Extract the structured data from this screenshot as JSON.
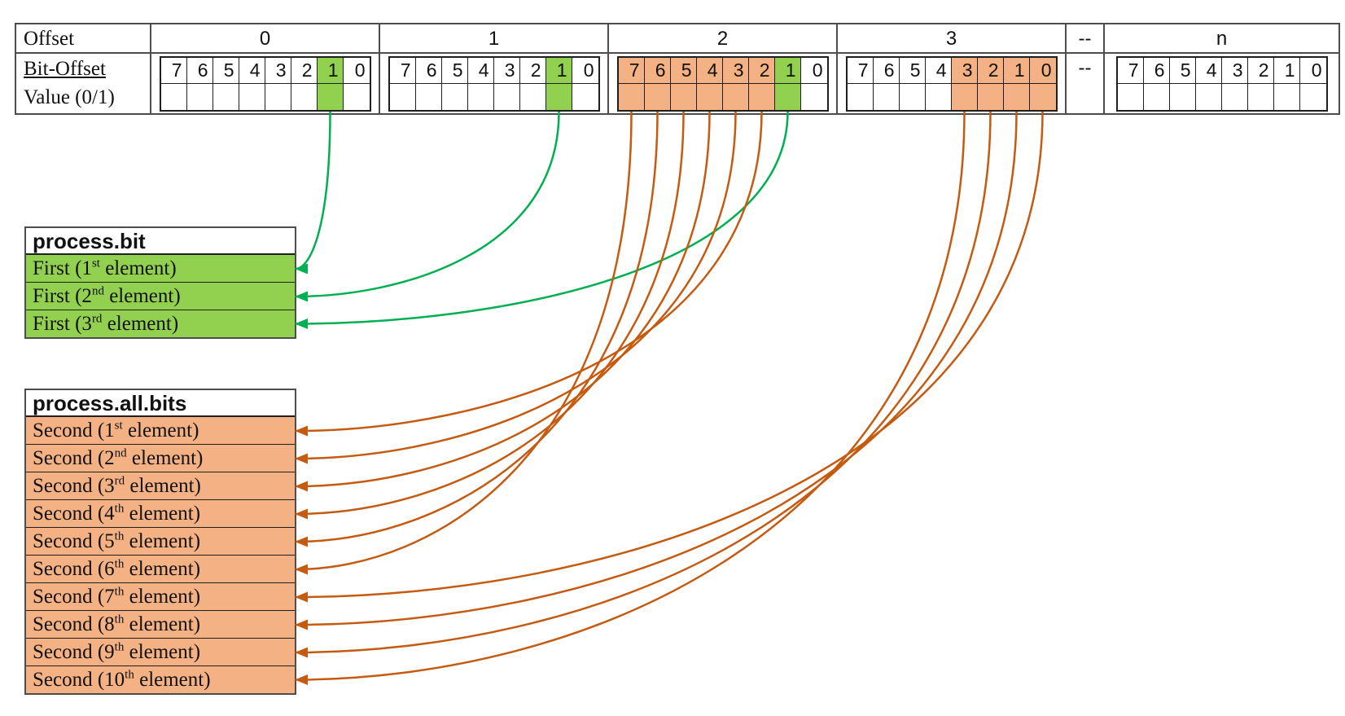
{
  "top_table": {
    "row_labels": {
      "offset": "Offset",
      "bit_offset": "Bit-Offset",
      "value": "Value (0/1)"
    },
    "groups": [
      {
        "type": "byte",
        "label": "0",
        "bits": [
          {
            "n": "7"
          },
          {
            "n": "6"
          },
          {
            "n": "5"
          },
          {
            "n": "4"
          },
          {
            "n": "3"
          },
          {
            "n": "2"
          },
          {
            "n": "1",
            "color": "green"
          },
          {
            "n": "0"
          }
        ]
      },
      {
        "type": "byte",
        "label": "1",
        "bits": [
          {
            "n": "7"
          },
          {
            "n": "6"
          },
          {
            "n": "5"
          },
          {
            "n": "4"
          },
          {
            "n": "3"
          },
          {
            "n": "2"
          },
          {
            "n": "1",
            "color": "green"
          },
          {
            "n": "0"
          }
        ]
      },
      {
        "type": "byte",
        "label": "2",
        "bits": [
          {
            "n": "7",
            "color": "orange"
          },
          {
            "n": "6",
            "color": "orange"
          },
          {
            "n": "5",
            "color": "orange"
          },
          {
            "n": "4",
            "color": "orange"
          },
          {
            "n": "3",
            "color": "orange"
          },
          {
            "n": "2",
            "color": "orange"
          },
          {
            "n": "1",
            "color": "green"
          },
          {
            "n": "0"
          }
        ]
      },
      {
        "type": "byte",
        "label": "3",
        "bits": [
          {
            "n": "7"
          },
          {
            "n": "6"
          },
          {
            "n": "5"
          },
          {
            "n": "4"
          },
          {
            "n": "3",
            "color": "orange"
          },
          {
            "n": "2",
            "color": "orange"
          },
          {
            "n": "1",
            "color": "orange"
          },
          {
            "n": "0",
            "color": "orange"
          }
        ]
      },
      {
        "type": "sep",
        "label": "--",
        "bit_label": "--"
      },
      {
        "type": "byte",
        "label": "n",
        "bits": [
          {
            "n": "7"
          },
          {
            "n": "6"
          },
          {
            "n": "5"
          },
          {
            "n": "4"
          },
          {
            "n": "3"
          },
          {
            "n": "2"
          },
          {
            "n": "1"
          },
          {
            "n": "0"
          }
        ]
      }
    ]
  },
  "first_table": {
    "title": "process.bit",
    "row_color": "green",
    "rows": [
      {
        "pre": "First (1",
        "sup": "st",
        "post": " element)"
      },
      {
        "pre": "First (2",
        "sup": "nd",
        "post": " element)"
      },
      {
        "pre": "First (3",
        "sup": "rd",
        "post": " element)"
      }
    ]
  },
  "second_table": {
    "title": "process.all.bits",
    "row_color": "orange",
    "rows": [
      {
        "pre": "Second (1",
        "sup": "st",
        "post": " element)"
      },
      {
        "pre": "Second (2",
        "sup": "nd",
        "post": " element)"
      },
      {
        "pre": "Second (3",
        "sup": "rd",
        "post": " element)"
      },
      {
        "pre": "Second (4",
        "sup": "th",
        "post": " element)"
      },
      {
        "pre": "Second (5",
        "sup": "th",
        "post": " element)"
      },
      {
        "pre": "Second (6",
        "sup": "th",
        "post": " element)"
      },
      {
        "pre": "Second (7",
        "sup": "th",
        "post": " element)"
      },
      {
        "pre": "Second (8",
        "sup": "th",
        "post": " element)"
      },
      {
        "pre": "Second (9",
        "sup": "th",
        "post": " element)"
      },
      {
        "pre": "Second (10",
        "sup": "th",
        "post": " element)"
      }
    ]
  },
  "arrows": [
    {
      "from": [
        0,
        "1"
      ],
      "to": [
        "first",
        0
      ],
      "color": "green"
    },
    {
      "from": [
        1,
        "1"
      ],
      "to": [
        "first",
        1
      ],
      "color": "green"
    },
    {
      "from": [
        2,
        "1"
      ],
      "to": [
        "first",
        2
      ],
      "color": "green"
    },
    {
      "from": [
        2,
        "2"
      ],
      "to": [
        "second",
        0
      ],
      "color": "orange"
    },
    {
      "from": [
        2,
        "3"
      ],
      "to": [
        "second",
        1
      ],
      "color": "orange"
    },
    {
      "from": [
        2,
        "4"
      ],
      "to": [
        "second",
        2
      ],
      "color": "orange"
    },
    {
      "from": [
        2,
        "5"
      ],
      "to": [
        "second",
        3
      ],
      "color": "orange"
    },
    {
      "from": [
        2,
        "6"
      ],
      "to": [
        "second",
        4
      ],
      "color": "orange"
    },
    {
      "from": [
        2,
        "7"
      ],
      "to": [
        "second",
        5
      ],
      "color": "orange"
    },
    {
      "from": [
        3,
        "0"
      ],
      "to": [
        "second",
        6
      ],
      "color": "orange"
    },
    {
      "from": [
        3,
        "1"
      ],
      "to": [
        "second",
        7
      ],
      "color": "orange"
    },
    {
      "from": [
        3,
        "2"
      ],
      "to": [
        "second",
        8
      ],
      "color": "orange"
    },
    {
      "from": [
        3,
        "3"
      ],
      "to": [
        "second",
        9
      ],
      "color": "orange"
    }
  ],
  "colors": {
    "cell_green": "#92D050",
    "cell_orange": "#F4B183",
    "arrow_green": "#00B050",
    "arrow_orange": "#C55A11",
    "table_border": "#4D4D4D",
    "grid_border": "#1F1F1F"
  }
}
